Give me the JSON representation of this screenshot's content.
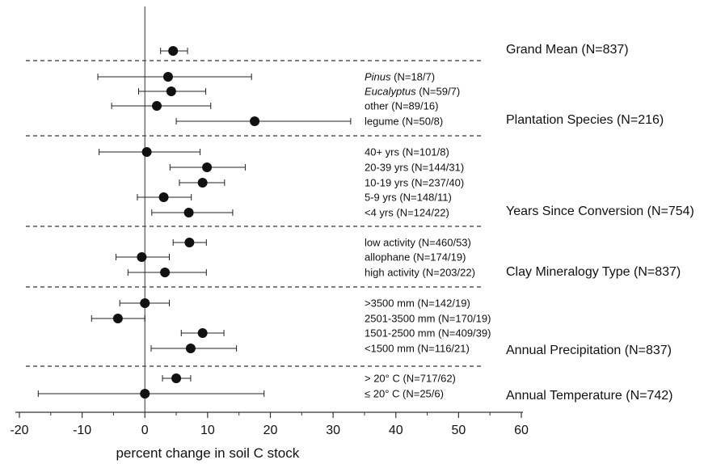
{
  "chart_data": {
    "type": "forest",
    "xlabel": "percent change in soil C stock",
    "xlim": [
      -20,
      60
    ],
    "xticks": [
      -20,
      -10,
      0,
      10,
      20,
      30,
      40,
      50,
      60
    ],
    "reference_line_x": 0,
    "groups": [
      {
        "name": "Grand Mean (N=837)",
        "rows": [
          {
            "label": "",
            "italic": "",
            "mean": 4.5,
            "low": 2.5,
            "high": 6.8
          }
        ]
      },
      {
        "name": "Plantation Species (N=216)",
        "rows": [
          {
            "label": " (N=18/7)",
            "italic": "Pinus",
            "mean": 3.7,
            "low": -7.5,
            "high": 17.0
          },
          {
            "label": " (N=59/7)",
            "italic": "Eucalyptus",
            "mean": 4.2,
            "low": -1.0,
            "high": 9.7
          },
          {
            "label": "other (N=89/16)",
            "italic": "",
            "mean": 1.9,
            "low": -5.3,
            "high": 10.5
          },
          {
            "label": "legume (N=50/8)",
            "italic": "",
            "mean": 17.5,
            "low": 5.0,
            "high": 32.8
          }
        ]
      },
      {
        "name": "Years Since Conversion (N=754)",
        "rows": [
          {
            "label": "40+ yrs (N=101/8)",
            "italic": "",
            "mean": 0.3,
            "low": -7.3,
            "high": 8.8
          },
          {
            "label": "20-39 yrs (N=144/31)",
            "italic": "",
            "mean": 9.9,
            "low": 4.0,
            "high": 16.0
          },
          {
            "label": "10-19 yrs (N=237/40)",
            "italic": "",
            "mean": 9.2,
            "low": 5.5,
            "high": 12.7
          },
          {
            "label": "5-9 yrs (N=148/11)",
            "italic": "",
            "mean": 3.0,
            "low": -1.2,
            "high": 7.4
          },
          {
            "label": "<4 yrs (N=124/22)",
            "italic": "",
            "mean": 7.0,
            "low": 1.1,
            "high": 14.0
          }
        ]
      },
      {
        "name": "Clay Mineralogy Type (N=837)",
        "rows": [
          {
            "label": "low activity (N=460/53)",
            "italic": "",
            "mean": 7.1,
            "low": 4.5,
            "high": 9.8
          },
          {
            "label": "allophane (N=174/19)",
            "italic": "",
            "mean": -0.5,
            "low": -4.6,
            "high": 3.9
          },
          {
            "label": "high activity (N=203/22)",
            "italic": "",
            "mean": 3.2,
            "low": -2.7,
            "high": 9.8
          }
        ]
      },
      {
        "name": "Annual Precipitation (N=837)",
        "rows": [
          {
            "label": ">3500 mm (N=142/19)",
            "italic": "",
            "mean": 0.0,
            "low": -4.0,
            "high": 3.9
          },
          {
            "label": "2501-3500 mm (N=170/19)",
            "italic": "",
            "mean": -4.3,
            "low": -8.5,
            "high": 0.0
          },
          {
            "label": "1501-2500 mm (N=409/39)",
            "italic": "",
            "mean": 9.2,
            "low": 5.8,
            "high": 12.6
          },
          {
            "label": "<1500 mm (N=116/21)",
            "italic": "",
            "mean": 7.3,
            "low": 1.0,
            "high": 14.6
          }
        ]
      },
      {
        "name": "Annual Temperature (N=742)",
        "rows": [
          {
            "label": "> 20° C (N=717/62)",
            "italic": "",
            "mean": 5.0,
            "low": 2.8,
            "high": 7.3
          },
          {
            "label": "≤ 20° C (N=25/6)",
            "italic": "",
            "mean": 0.0,
            "low": -17.0,
            "high": 19.0
          }
        ]
      }
    ]
  }
}
